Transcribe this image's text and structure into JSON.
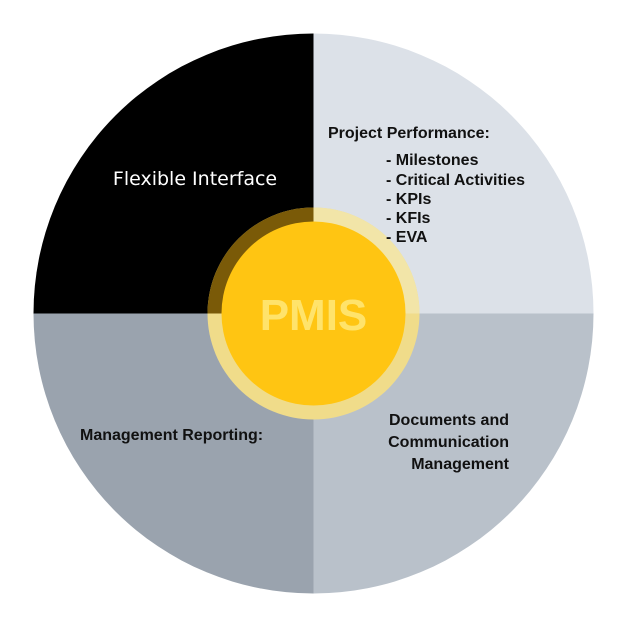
{
  "diagram": {
    "center": {
      "label": "PMIS"
    },
    "quadrants": {
      "top_left": {
        "label": "Flexible Interface"
      },
      "top_right": {
        "heading": "Project Performance:",
        "items": [
          "- Milestones",
          "- Critical Activities",
          "- KPIs",
          "- KFIs",
          "- EVA"
        ]
      },
      "bottom_left": {
        "label": "Management Reporting:"
      },
      "bottom_right": {
        "lines": [
          "Documents and",
          "Communication",
          "Management"
        ]
      }
    }
  },
  "colors": {
    "top_left": "#000000",
    "top_right": "#DCE1E8",
    "bottom_left": "#9AA3AE",
    "bottom_right": "#B9C1CA",
    "center_fill": "#FFC512",
    "center_ring": "#F0DC8A",
    "center_ring_dark": "#7A5A08",
    "center_text": "#FFE36B"
  }
}
